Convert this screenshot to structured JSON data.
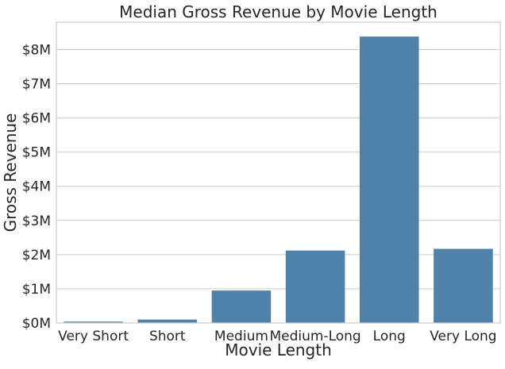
{
  "chart_data": {
    "type": "bar",
    "title": "Median Gross Revenue by Movie Length",
    "xlabel": "Movie Length",
    "ylabel": "Gross Revenue",
    "categories": [
      "Very Short",
      "Short",
      "Medium",
      "Medium-Long",
      "Long",
      "Very Long"
    ],
    "values": [
      40000,
      100000,
      950000,
      2120000,
      8380000,
      2170000
    ],
    "ylim": [
      0,
      8800000
    ],
    "yticks": [
      0,
      1000000,
      2000000,
      3000000,
      4000000,
      5000000,
      6000000,
      7000000,
      8000000
    ],
    "ytick_labels": [
      "$0M",
      "$1M",
      "$2M",
      "$3M",
      "$4M",
      "$5M",
      "$6M",
      "$7M",
      "$8M"
    ],
    "grid": true,
    "bar_color": "#4f82aa",
    "grid_color": "#cccccc",
    "frame_color": "#cccccc"
  }
}
